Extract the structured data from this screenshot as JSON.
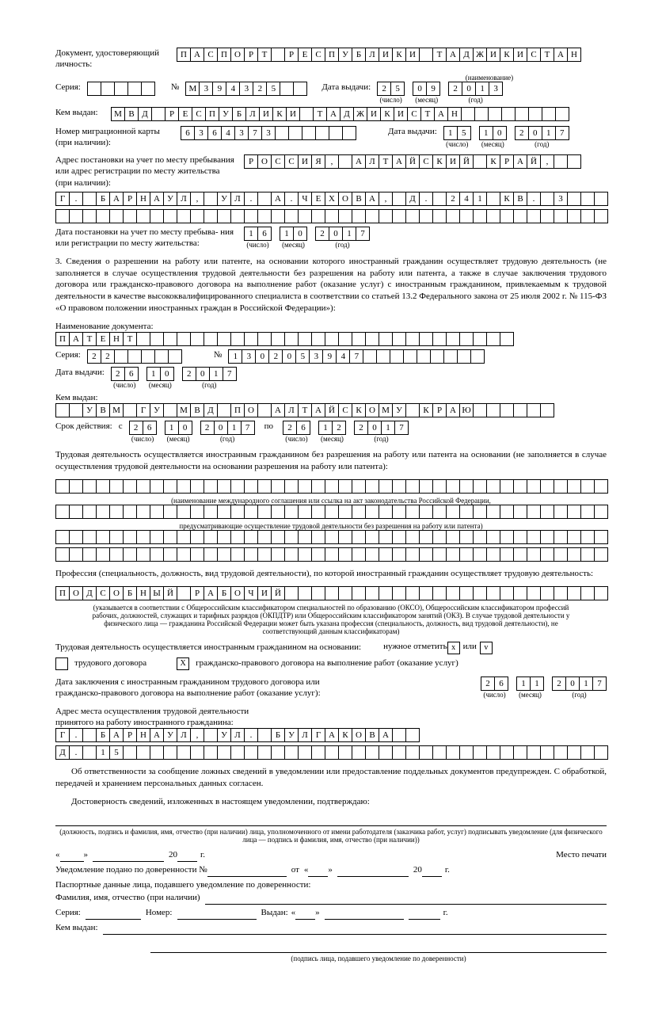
{
  "doc": {
    "label": "Документ, удостоверяющий личность:",
    "name_cells": [
      "П",
      "А",
      "С",
      "П",
      "О",
      "Р",
      "Т",
      "",
      "Р",
      "Е",
      "С",
      "П",
      "У",
      "Б",
      "Л",
      "И",
      "К",
      "И",
      "",
      "Т",
      "А",
      "Д",
      "Ж",
      "И",
      "К",
      "И",
      "С",
      "Т",
      "А",
      "Н"
    ],
    "name_sub": "(наименование)",
    "series_label": "Серия:",
    "series_cells": [
      "",
      "",
      "",
      "",
      ""
    ],
    "num_label": "№",
    "num_cells": [
      "М",
      "3",
      "9",
      "4",
      "3",
      "2",
      "5",
      "",
      ""
    ],
    "issue_label": "Дата выдачи:",
    "issue_d": [
      "2",
      "5"
    ],
    "issue_m": [
      "0",
      "9"
    ],
    "issue_y": [
      "2",
      "0",
      "1",
      "3"
    ],
    "issued_by_label": "Кем выдан:",
    "issued_by_cells": [
      "М",
      "В",
      "Д",
      "",
      "Р",
      "Е",
      "С",
      "П",
      "У",
      "Б",
      "Л",
      "И",
      "К",
      "И",
      "",
      "Т",
      "А",
      "Д",
      "Ж",
      "И",
      "К",
      "И",
      "С",
      "Т",
      "А",
      "Н",
      "",
      "",
      "",
      "",
      "",
      "",
      "",
      ""
    ]
  },
  "migr": {
    "label": "Номер миграционной карты (при наличии):",
    "num_cells": [
      "6",
      "3",
      "6",
      "4",
      "3",
      "7",
      "3",
      "",
      "",
      "",
      "",
      "",
      ""
    ],
    "issue_label": "Дата выдачи:",
    "issue_d": [
      "1",
      "5"
    ],
    "issue_m": [
      "1",
      "0"
    ],
    "issue_y": [
      "2",
      "0",
      "1",
      "7"
    ]
  },
  "addr": {
    "label": "Адрес постановки на учет по месту пребывания или адрес регистрации по месту жительства (при наличии):",
    "row1": [
      "Р",
      "О",
      "С",
      "С",
      "И",
      "Я",
      ",",
      "",
      "А",
      "Л",
      "Т",
      "А",
      "Й",
      "С",
      "К",
      "И",
      "Й",
      "",
      "К",
      "Р",
      "А",
      "Й",
      ",",
      "",
      ""
    ],
    "row2": [
      "Г",
      ".",
      "",
      "Б",
      "А",
      "Р",
      "Н",
      "А",
      "У",
      "Л",
      ",",
      "",
      "У",
      "Л",
      ".",
      "",
      "А",
      ".",
      "Ч",
      "Е",
      "Х",
      "О",
      "В",
      "А",
      ",",
      "",
      "Д",
      ".",
      "",
      "2",
      "4",
      "1",
      "",
      "К",
      "В",
      ".",
      "",
      "3",
      "",
      "",
      ""
    ],
    "row3": [
      "",
      "",
      "",
      "",
      "",
      "",
      "",
      "",
      "",
      "",
      "",
      "",
      "",
      "",
      "",
      "",
      "",
      "",
      "",
      "",
      "",
      "",
      "",
      "",
      "",
      "",
      "",
      "",
      "",
      "",
      "",
      "",
      "",
      "",
      "",
      "",
      "",
      "",
      "",
      "",
      ""
    ],
    "reg_date_label": "Дата постановки на учет по месту пребыва- ния или регистрации по месту жительства:",
    "reg_d": [
      "1",
      "6"
    ],
    "reg_m": [
      "1",
      "0"
    ],
    "reg_y": [
      "2",
      "0",
      "1",
      "7"
    ]
  },
  "sec3": {
    "text": "3. Сведения о разрешении на работу или патенте, на основании которого иностранный гражданин осуществляет трудовую деятельность (не заполняется в случае осуществления трудовой деятельности без разрешения на работу или патента, а также в случае заключения трудового договора или гражданско-правового договора на выполнение работ (оказание услуг) с иностранным гражданином, привлекаемым к трудовой деятельности в качестве высококвалифицированного специалиста в соответствии со статьей 13.2 Федерального закона от 25 июля 2002 г. № 115-ФЗ «О правовом положении иностранных граждан в Российской Федерации»):",
    "docname_label": "Наименование документа:",
    "docname_cells": [
      "П",
      "А",
      "Т",
      "Е",
      "Н",
      "Т",
      "",
      "",
      "",
      "",
      "",
      "",
      "",
      "",
      "",
      "",
      "",
      "",
      "",
      "",
      "",
      "",
      "",
      "",
      "",
      "",
      "",
      "",
      "",
      "",
      "",
      "",
      "",
      ""
    ],
    "series_label": "Серия:",
    "series_cells": [
      "2",
      "2",
      "",
      "",
      "",
      "",
      ""
    ],
    "num_label": "№",
    "num_cells": [
      "1",
      "3",
      "0",
      "2",
      "0",
      "5",
      "3",
      "9",
      "4",
      "7",
      "",
      "",
      "",
      "",
      "",
      "",
      "",
      "",
      ""
    ],
    "issue_label": "Дата выдачи:",
    "issue_d": [
      "2",
      "6"
    ],
    "issue_m": [
      "1",
      "0"
    ],
    "issue_y": [
      "2",
      "0",
      "1",
      "7"
    ],
    "by_label": "Кем выдан:",
    "by_cells": [
      "",
      "",
      "У",
      "В",
      "М",
      "",
      "Г",
      "У",
      "",
      "М",
      "В",
      "Д",
      "",
      "П",
      "О",
      "",
      "А",
      "Л",
      "Т",
      "А",
      "Й",
      "С",
      "К",
      "О",
      "М",
      "У",
      "",
      "К",
      "Р",
      "А",
      "Ю",
      "",
      "",
      "",
      "",
      "",
      ""
    ],
    "term_label": "Срок действия:",
    "term_from": "с",
    "term_to": "по",
    "from_d": [
      "2",
      "6"
    ],
    "from_m": [
      "1",
      "0"
    ],
    "from_y": [
      "2",
      "0",
      "1",
      "7"
    ],
    "to_d": [
      "2",
      "6"
    ],
    "to_m": [
      "1",
      "2"
    ],
    "to_y": [
      "2",
      "0",
      "1",
      "7"
    ]
  },
  "nopermit": {
    "label": "Трудовая деятельность осуществляется иностранным гражданином без разрешения на работу или патента на основании (не заполняется в случае осуществления трудовой деятельности на основании разрешения на работу или патента):",
    "sub1": "(наименование международного соглашения или ссылка на акт законодательства Российской Федерации,",
    "sub2": "предусматривающие осуществление трудовой деятельности без разрешения на работу или патента)"
  },
  "prof": {
    "label": "Профессия (специальность, должность, вид трудовой деятельности), по которой иностранный гражданин осуществляет трудовую деятельность:",
    "cells": [
      "П",
      "О",
      "Д",
      "С",
      "О",
      "Б",
      "Н",
      "Ы",
      "Й",
      "",
      "Р",
      "А",
      "Б",
      "О",
      "Ч",
      "И",
      "Й",
      "",
      "",
      "",
      "",
      "",
      "",
      "",
      "",
      "",
      "",
      "",
      "",
      "",
      "",
      "",
      "",
      "",
      "",
      "",
      "",
      "",
      "",
      "",
      ""
    ],
    "note": "(указывается в соответствии с Общероссийским классификатором специальностей по образованию (ОКСО), Общероссийским классификатором профессий рабочих, должностей, служащих и тарифных разрядов (ОКПДТР) или Общероссийским классификатором занятий (ОКЗ). В случае трудовой деятельности у физического лица — гражданина Российской Федерации может быть указана профессия (специальность, должность, вид трудовой деятельности), не соответствующий данным классификаторам)"
  },
  "basis": {
    "label": "Трудовая деятельность осуществляется иностранным гражданином на основании:",
    "mark_hint": "нужное отметить",
    "x": "х",
    "v": "v",
    "or": "или",
    "opt1": "трудового договора",
    "opt2": "гражданско-правового договора на выполнение работ (оказание услуг)",
    "checked": "X"
  },
  "contract": {
    "label": "Дата заключения с иностранным гражданином трудового договора или гражданско-правового договора на выполнение работ (оказание услуг):",
    "d": [
      "2",
      "6"
    ],
    "m": [
      "1",
      "1"
    ],
    "y": [
      "2",
      "0",
      "1",
      "7"
    ]
  },
  "workaddr": {
    "label": "Адрес места осуществления трудовой деятельности принятого на работу иностранного гражданина:",
    "row1": [
      "Г",
      ".",
      "",
      "Б",
      "А",
      "Р",
      "Н",
      "А",
      "У",
      "Л",
      ",",
      "",
      "У",
      "Л",
      ".",
      "",
      "Б",
      "У",
      "Л",
      "Г",
      "А",
      "К",
      "О",
      "В",
      "А",
      "",
      ""
    ],
    "row2": [
      "Д",
      ".",
      "",
      "1",
      "5",
      "",
      "",
      "",
      "",
      "",
      "",
      "",
      "",
      "",
      "",
      "",
      "",
      "",
      "",
      "",
      "",
      "",
      "",
      "",
      "",
      "",
      "",
      "",
      "",
      "",
      "",
      "",
      "",
      "",
      "",
      "",
      "",
      "",
      "",
      "",
      ""
    ]
  },
  "footer": {
    "p1": "Об ответственности за сообщение ложных сведений в уведомлении или предоставление поддельных документов предупрежден. С обработкой, передачей и хранением персональных данных согласен.",
    "p2": "Достоверность сведений, изложенных в настоящем уведомлении, подтверждаю:",
    "sig1": "(должность, подпись и фамилия, имя, отчество (при наличии) лица, уполномоченного от имени работодателя (заказчика работ, услуг) подписывать уведомление (для физического лица — подпись и фамилия, имя, отчество (при наличии))",
    "date_tpl_open": "«",
    "date_tpl_close": "»",
    "y20": "20",
    "g": "г.",
    "stamp": "Место печати",
    "poa": "Уведомление подано по доверенности №",
    "ot": "от",
    "pass": "Паспортные данные лица, подавшего уведомление по доверенности:",
    "fio": "Фамилия, имя, отчество (при наличии)",
    "ser": "Серия:",
    "num": "Номер:",
    "issued": "Выдан:",
    "by": "Кем выдан:",
    "sig2": "(подпись лица, подавшего уведомление по доверенности)"
  },
  "subs": {
    "d": "(число)",
    "m": "(месяц)",
    "y": "(год)"
  }
}
